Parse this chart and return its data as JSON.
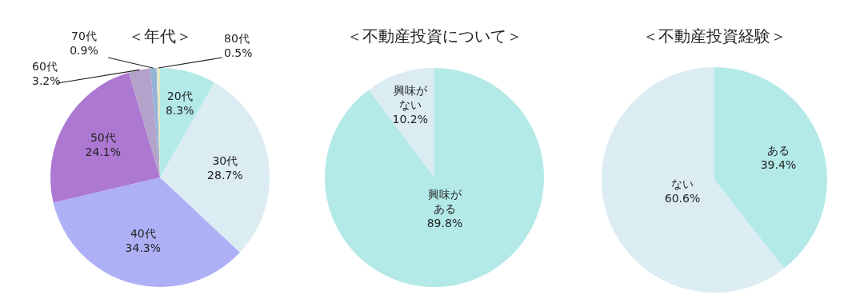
{
  "chart_data": [
    {
      "type": "pie",
      "title": "＜年代＞",
      "categories": [
        "20代",
        "30代",
        "40代",
        "50代",
        "60代",
        "70代",
        "80代"
      ],
      "values": [
        8.3,
        28.7,
        34.3,
        24.1,
        3.2,
        0.9,
        0.5
      ],
      "value_labels": [
        "8.3%",
        "28.7%",
        "34.3%",
        "24.1%",
        "3.2%",
        "0.9%",
        "0.5%"
      ],
      "colors": [
        "#b3eae8",
        "#dbecf2",
        "#adb0f5",
        "#ad78d2",
        "#b3a2c9",
        "#93b3d8",
        "#e3e8c8"
      ]
    },
    {
      "type": "pie",
      "title": "＜不動産投資について＞",
      "categories": [
        "興味がある",
        "興味がない"
      ],
      "values": [
        89.8,
        10.2
      ],
      "value_labels": [
        "89.8%",
        "10.2%"
      ],
      "colors": [
        "#b3eae8",
        "#dbecf2"
      ]
    },
    {
      "type": "pie",
      "title": "＜不動産投資経験＞",
      "categories": [
        "ある",
        "ない"
      ],
      "values": [
        39.4,
        60.6
      ],
      "value_labels": [
        "39.4%",
        "60.6%"
      ],
      "colors": [
        "#b3eae8",
        "#dbecf2"
      ]
    }
  ]
}
